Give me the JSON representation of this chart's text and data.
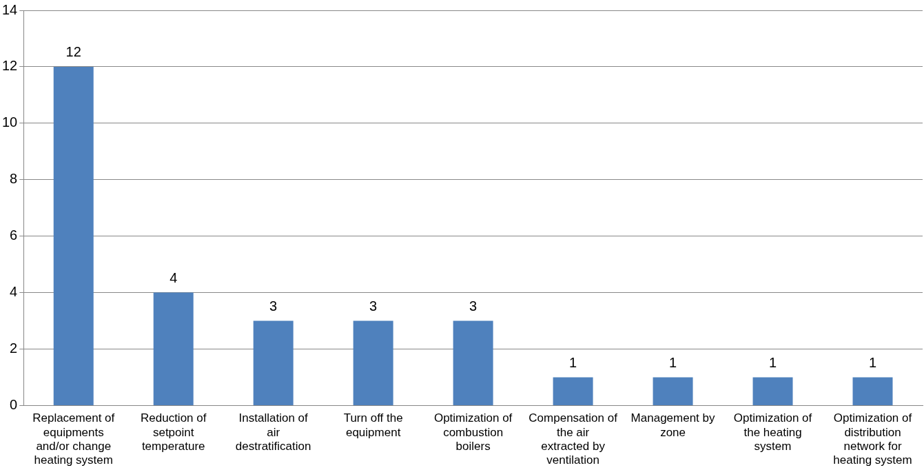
{
  "chart_data": {
    "type": "bar",
    "categories": [
      "Replacement of equipments and/or change heating system",
      "Reduction of setpoint temperature",
      "Installation of air destratification",
      "Turn off the equipment",
      "Optimization of combustion boilers",
      "Compensation of the air extracted by ventilation",
      "Management by zone",
      "Optimization of the heating system",
      "Optimization of distribution network for heating system"
    ],
    "values": [
      12,
      4,
      3,
      3,
      3,
      1,
      1,
      1,
      1
    ],
    "color": "#4f81bd",
    "ylim": [
      0,
      14
    ],
    "yticks": [
      0,
      2,
      4,
      6,
      8,
      10,
      12,
      14
    ],
    "grid": "y",
    "data_labels": true
  }
}
